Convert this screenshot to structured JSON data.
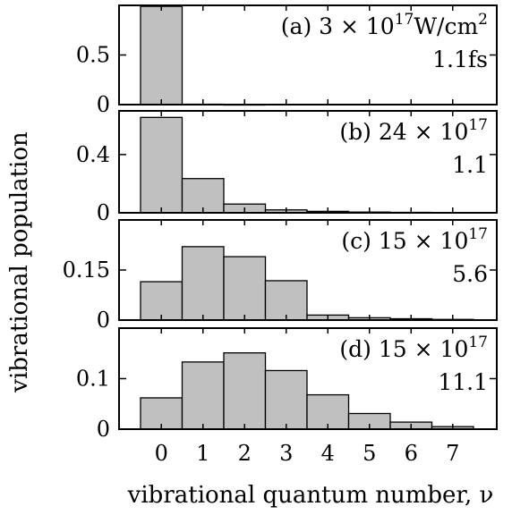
{
  "chart_data": {
    "type": "bar",
    "xlabel": "vibrational quantum number, ν",
    "ylabel": "vibrational population",
    "categories": [
      "0",
      "1",
      "2",
      "3",
      "4",
      "5",
      "6",
      "7"
    ],
    "x_values": [
      0,
      1,
      2,
      3,
      4,
      5,
      6,
      7
    ],
    "panels": [
      {
        "label": "(a)",
        "intensity": "3 × 10",
        "intensity_exp": "17",
        "intensity_unit": "W/cm",
        "intensity_unit_exp": "2",
        "time": "1.1fs",
        "ylim": [
          0,
          1.0
        ],
        "yticks": [
          0,
          0.5
        ],
        "ytick_labels": [
          "0",
          "0.5"
        ],
        "values": [
          0.99,
          0.004,
          0.001,
          0.0,
          0.0,
          0.0,
          0.0,
          0.0
        ]
      },
      {
        "label": "(b)",
        "intensity": "24 × 10",
        "intensity_exp": "17",
        "intensity_unit": "",
        "intensity_unit_exp": "",
        "time": "1.1",
        "ylim": [
          0,
          0.7
        ],
        "yticks": [
          0,
          0.4
        ],
        "ytick_labels": [
          "0",
          "0.4"
        ],
        "values": [
          0.655,
          0.235,
          0.06,
          0.02,
          0.01,
          0.005,
          0.003,
          0.002
        ]
      },
      {
        "label": "(c)",
        "intensity": "15 × 10",
        "intensity_exp": "17",
        "intensity_unit": "",
        "intensity_unit_exp": "",
        "time": "5.6",
        "ylim": [
          0,
          0.3
        ],
        "yticks": [
          0,
          0.15
        ],
        "ytick_labels": [
          "0",
          "0.15"
        ],
        "values": [
          0.115,
          0.22,
          0.19,
          0.118,
          0.015,
          0.007,
          0.004,
          0.002
        ]
      },
      {
        "label": "(d)",
        "intensity": "15 × 10",
        "intensity_exp": "17",
        "intensity_unit": "",
        "intensity_unit_exp": "",
        "time": "11.1",
        "ylim": [
          0,
          0.2
        ],
        "yticks": [
          0,
          0.1
        ],
        "ytick_labels": [
          "0",
          "0.1"
        ],
        "values": [
          0.062,
          0.133,
          0.151,
          0.116,
          0.068,
          0.031,
          0.014,
          0.005
        ]
      }
    ]
  }
}
